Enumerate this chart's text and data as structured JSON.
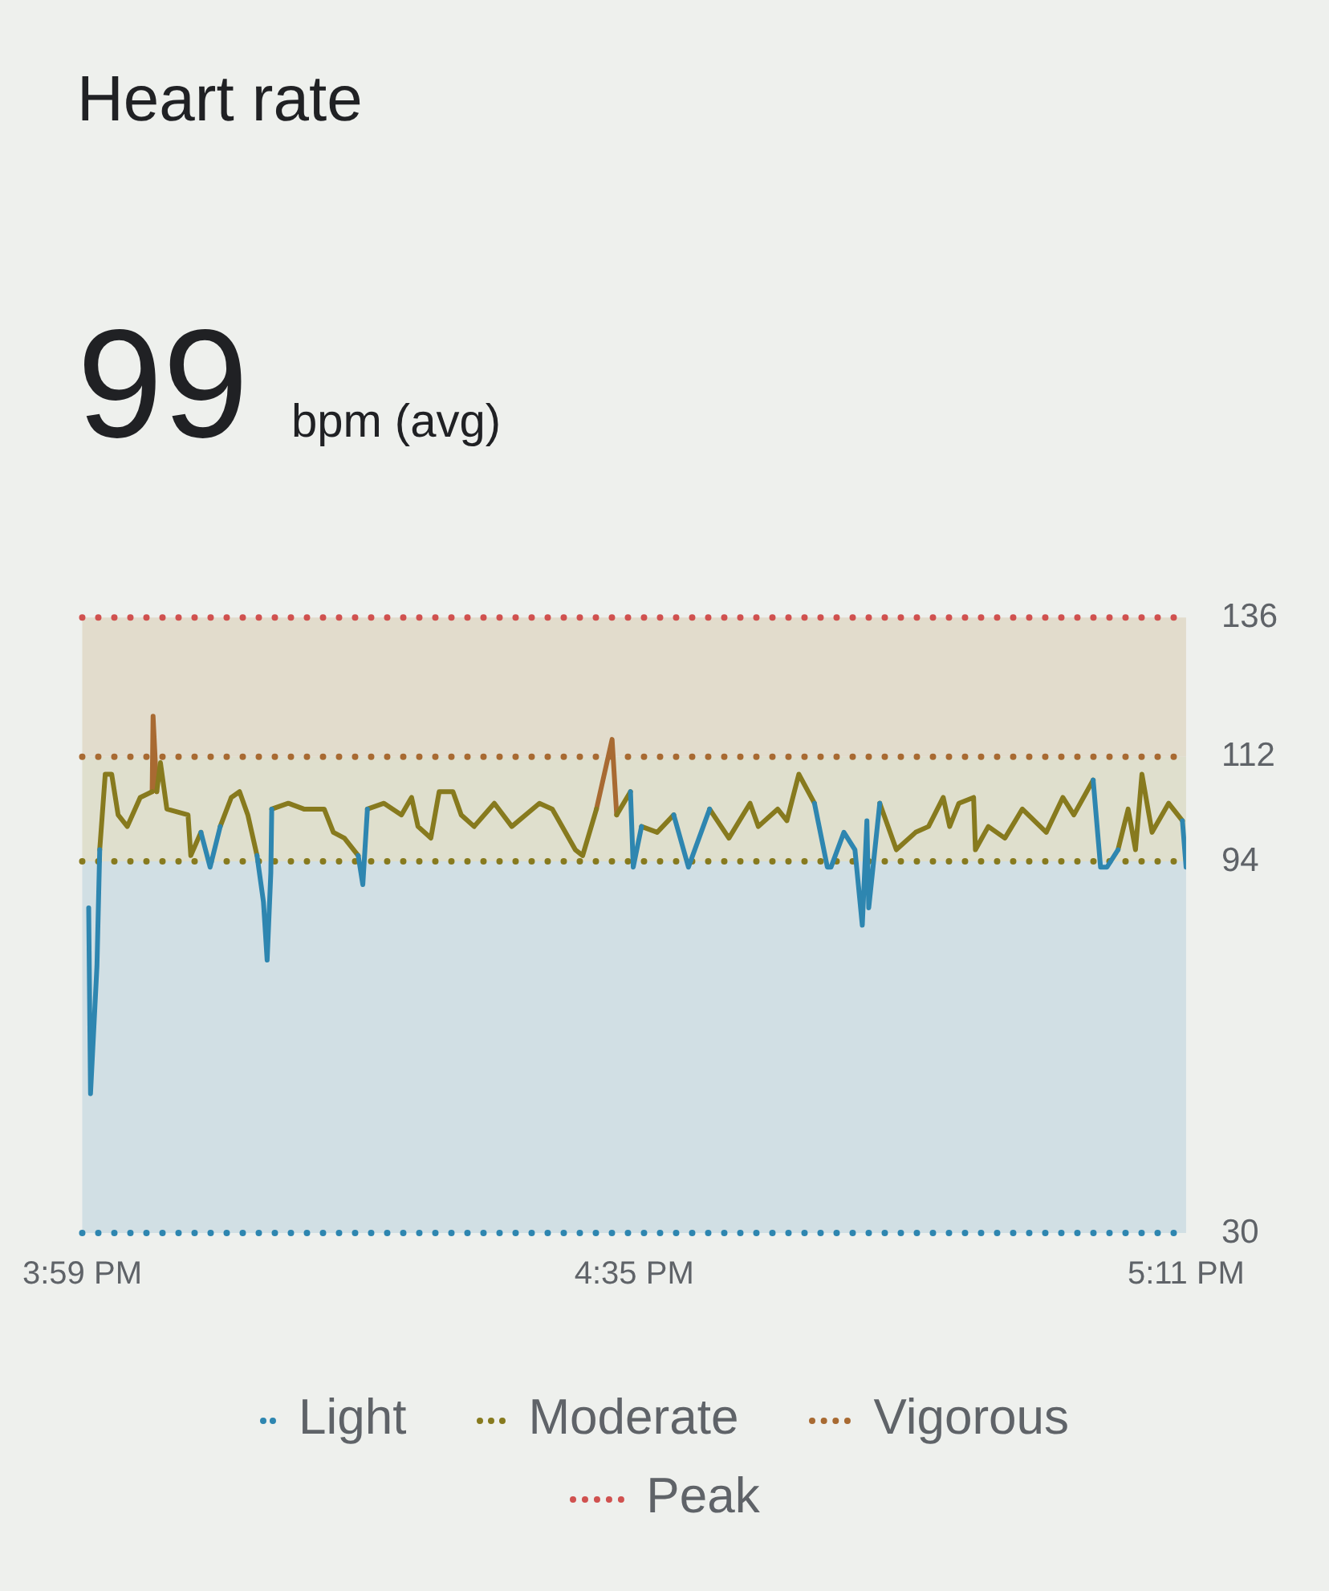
{
  "chart_data": {
    "type": "line",
    "title": "Heart rate",
    "subtitle": "99 bpm (avg)",
    "x": [
      15.99,
      15.992,
      15.999,
      16.002,
      16.008,
      16.015,
      16.022,
      16.032,
      16.046,
      16.059,
      16.06,
      16.064,
      16.068,
      16.075,
      16.098,
      16.101,
      16.112,
      16.122,
      16.133,
      16.145,
      16.154,
      16.163,
      16.173,
      16.18,
      16.184,
      16.188,
      16.189,
      16.207,
      16.224,
      16.246,
      16.256,
      16.268,
      16.283,
      16.288,
      16.293,
      16.311,
      16.33,
      16.341,
      16.348,
      16.362,
      16.371,
      16.386,
      16.395,
      16.409,
      16.431,
      16.45,
      16.48,
      16.494,
      16.519,
      16.527,
      16.542,
      16.559,
      16.564,
      16.579,
      16.582,
      16.591,
      16.608,
      16.626,
      16.642,
      16.665,
      16.686,
      16.709,
      16.718,
      16.739,
      16.749,
      16.762,
      16.779,
      16.793,
      16.797,
      16.811,
      16.823,
      16.831,
      16.836,
      16.838,
      16.85,
      16.868,
      16.889,
      16.903,
      16.919,
      16.926,
      16.936,
      16.952,
      16.954,
      16.968,
      16.986,
      17.005,
      17.031,
      17.049,
      17.061,
      17.082,
      17.09,
      17.097,
      17.109,
      17.12,
      17.128,
      17.135,
      17.146,
      17.164,
      17.179,
      17.183
    ],
    "series": [
      {
        "name": "Light",
        "color": "#2e86b0",
        "values": [
          86,
          54,
          76,
          96,
          null,
          null,
          null,
          null,
          null,
          null,
          null,
          null,
          null,
          null,
          null,
          null,
          99,
          93,
          100,
          null,
          null,
          null,
          95,
          87,
          77,
          92,
          103,
          null,
          null,
          null,
          null,
          null,
          95,
          90,
          103,
          null,
          null,
          null,
          null,
          null,
          null,
          null,
          null,
          null,
          null,
          null,
          null,
          null,
          null,
          null,
          null,
          null,
          null,
          106,
          93,
          100,
          null,
          102,
          93,
          103,
          null,
          null,
          null,
          null,
          null,
          null,
          104,
          93,
          93,
          99,
          96,
          83,
          101,
          86,
          104,
          null,
          null,
          null,
          null,
          null,
          null,
          null,
          null,
          null,
          null,
          null,
          null,
          null,
          null,
          108,
          93,
          93,
          96,
          null,
          null,
          null,
          null,
          null,
          101,
          93
        ]
      },
      {
        "name": "Moderate",
        "color": "#877a1e",
        "values": [
          null,
          null,
          null,
          96,
          109,
          109,
          102,
          100,
          105,
          106,
          null,
          106,
          111,
          103,
          102,
          95,
          99,
          null,
          100,
          105,
          106,
          102,
          95,
          null,
          null,
          null,
          103,
          104,
          103,
          103,
          99,
          98,
          95,
          null,
          103,
          104,
          102,
          105,
          100,
          98,
          106,
          106,
          102,
          100,
          104,
          100,
          104,
          103,
          96,
          95,
          103,
          null,
          102,
          106,
          null,
          100,
          99,
          102,
          null,
          103,
          98,
          104,
          100,
          103,
          101,
          109,
          104,
          null,
          null,
          null,
          null,
          null,
          null,
          null,
          104,
          96,
          99,
          100,
          105,
          100,
          104,
          105,
          96,
          100,
          98,
          103,
          99,
          105,
          102,
          108,
          null,
          null,
          96,
          103,
          96,
          109,
          99,
          104,
          101,
          null
        ]
      },
      {
        "name": "Vigorous",
        "color": "#a86a32",
        "values": [
          null,
          null,
          null,
          null,
          null,
          null,
          null,
          null,
          null,
          106,
          119,
          106,
          null,
          null,
          null,
          null,
          null,
          null,
          null,
          null,
          null,
          null,
          null,
          null,
          null,
          null,
          null,
          null,
          null,
          null,
          null,
          null,
          null,
          null,
          null,
          null,
          null,
          null,
          null,
          null,
          null,
          null,
          null,
          null,
          null,
          null,
          null,
          null,
          null,
          null,
          103,
          115,
          102,
          null,
          null,
          null,
          null,
          null,
          null,
          null,
          null,
          null,
          null,
          null,
          null,
          null,
          null,
          null,
          null,
          null,
          null,
          null,
          null,
          null,
          null,
          null,
          null,
          null,
          null,
          null,
          null,
          null,
          null,
          null,
          null,
          null,
          null,
          null,
          null,
          null,
          null,
          null,
          null,
          null,
          null,
          null,
          null,
          null,
          null,
          null
        ]
      }
    ],
    "xlim": [
      15.983,
      17.183
    ],
    "xticks": [
      {
        "value": 15.983,
        "label": "3:59 PM"
      },
      {
        "value": 16.583,
        "label": "4:35 PM"
      },
      {
        "value": 17.183,
        "label": "5:11 PM"
      }
    ],
    "ylim": [
      30,
      136
    ],
    "yticks": [
      30,
      94,
      112,
      136
    ],
    "bands": [
      {
        "axis": "y",
        "from": 30,
        "to": 94,
        "color": "#d1dfe4"
      },
      {
        "axis": "y",
        "from": 94,
        "to": 112,
        "color": "#dfdfcd"
      },
      {
        "axis": "y",
        "from": 112,
        "to": 136,
        "color": "#e2dccc"
      }
    ],
    "ref_lines": [
      {
        "axis": "y",
        "value": 30,
        "color": "#2e86b0",
        "line_style": "dotted"
      },
      {
        "axis": "y",
        "value": 94,
        "color": "#877a1e",
        "line_style": "dotted"
      },
      {
        "axis": "y",
        "value": 112,
        "color": "#a86a32",
        "line_style": "dotted"
      },
      {
        "axis": "y",
        "value": 136,
        "label": "Peak",
        "color": "#d0514f",
        "line_style": "dotted"
      }
    ],
    "grid": false,
    "legend": "bottom",
    "marker": "none",
    "line_style": "solid"
  }
}
